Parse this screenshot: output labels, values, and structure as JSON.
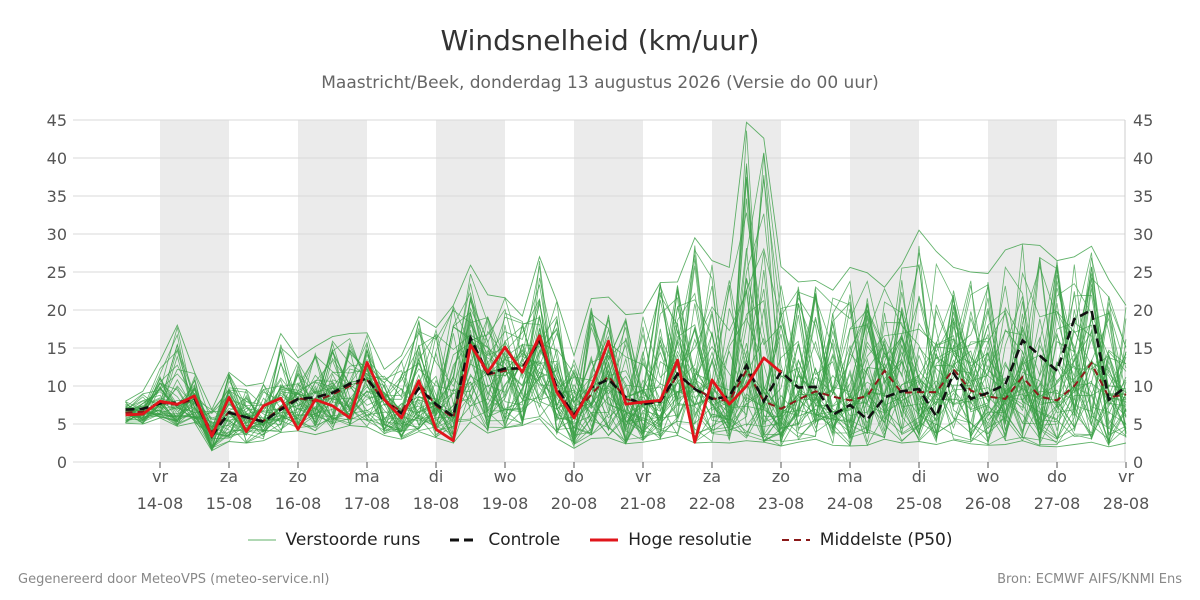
{
  "title": "Windsnelheid (km/uur)",
  "subtitle": "Maastricht/Beek, donderdag 13 augustus 2026 (Versie do 00 uur)",
  "footer": {
    "left": "Gegenereerd door MeteoVPS (meteo-service.nl)",
    "right": "Bron: ECMWF AIFS/KNMI Ens"
  },
  "legend": {
    "ensemble": "Verstoorde runs",
    "control": "Controle",
    "hires": "Hoge resolutie",
    "median": "Middelste (P50)"
  },
  "chart_data": {
    "type": "line",
    "title": "Windsnelheid (km/uur)",
    "ylim": [
      0,
      45
    ],
    "yticks": [
      0,
      5,
      10,
      15,
      20,
      25,
      30,
      35,
      40,
      45
    ],
    "xrange_days": [
      13.3,
      28
    ],
    "xticks": [
      {
        "day": "vr",
        "date": "14-08"
      },
      {
        "day": "za",
        "date": "15-08"
      },
      {
        "day": "zo",
        "date": "16-08"
      },
      {
        "day": "ma",
        "date": "17-08"
      },
      {
        "day": "di",
        "date": "18-08"
      },
      {
        "day": "wo",
        "date": "19-08"
      },
      {
        "day": "do",
        "date": "20-08"
      },
      {
        "day": "vr",
        "date": "21-08"
      },
      {
        "day": "za",
        "date": "22-08"
      },
      {
        "day": "zo",
        "date": "23-08"
      },
      {
        "day": "ma",
        "date": "24-08"
      },
      {
        "day": "di",
        "date": "25-08"
      },
      {
        "day": "wo",
        "date": "26-08"
      },
      {
        "day": "do",
        "date": "27-08"
      },
      {
        "day": "vr",
        "date": "28-08"
      }
    ],
    "shaded_days": [
      "14-08",
      "16-08",
      "18-08",
      "20-08",
      "22-08",
      "24-08",
      "26-08"
    ],
    "grid": true,
    "legend_position": "bottom",
    "colors": {
      "ensemble": "#3a9f45",
      "control": "#111111",
      "hires": "#e0151b",
      "median": "#8b1a1a",
      "shade": "#ebebeb",
      "grid": "#d9d9d9"
    },
    "series": [
      {
        "name": "Hoge resolutie",
        "x": [
          "13-08 12:00",
          "13-08 18:00",
          "14-08 00:00",
          "14-08 06:00",
          "14-08 12:00",
          "14-08 18:00",
          "15-08 00:00",
          "15-08 06:00",
          "15-08 12:00",
          "15-08 18:00",
          "16-08 00:00",
          "16-08 06:00",
          "16-08 12:00",
          "16-08 18:00",
          "17-08 00:00",
          "17-08 06:00",
          "17-08 12:00",
          "17-08 18:00",
          "18-08 00:00",
          "18-08 06:00",
          "18-08 12:00",
          "18-08 18:00",
          "19-08 00:00",
          "19-08 06:00",
          "19-08 12:00",
          "19-08 18:00",
          "20-08 00:00",
          "20-08 06:00",
          "20-08 12:00",
          "20-08 18:00",
          "21-08 00:00",
          "21-08 06:00",
          "21-08 12:00",
          "21-08 18:00",
          "22-08 00:00",
          "22-08 06:00",
          "22-08 12:00",
          "22-08 18:00",
          "23-08 00:00"
        ],
        "values": [
          6.2,
          6.3,
          8.0,
          7.6,
          8.7,
          3.4,
          8.5,
          4.0,
          7.4,
          8.4,
          4.3,
          8.2,
          7.4,
          5.8,
          13.1,
          8.2,
          5.8,
          10.7,
          4.3,
          2.8,
          15.4,
          11.8,
          15.1,
          11.8,
          16.6,
          9.2,
          5.8,
          9.9,
          15.9,
          7.6,
          7.9,
          8.1,
          13.4,
          2.6,
          10.8,
          7.6,
          10.0,
          13.7,
          11.8
        ]
      },
      {
        "name": "Controle",
        "x": [
          "13-08 12:00",
          "13-08 18:00",
          "14-08 00:00",
          "14-08 06:00",
          "14-08 12:00",
          "14-08 18:00",
          "15-08 00:00",
          "15-08 06:00",
          "15-08 12:00",
          "15-08 18:00",
          "16-08 00:00",
          "16-08 06:00",
          "16-08 12:00",
          "16-08 18:00",
          "17-08 00:00",
          "17-08 06:00",
          "17-08 12:00",
          "17-08 18:00",
          "18-08 00:00",
          "18-08 06:00",
          "18-08 12:00",
          "18-08 18:00",
          "19-08 00:00",
          "19-08 06:00",
          "19-08 12:00",
          "19-08 18:00",
          "20-08 00:00",
          "20-08 06:00",
          "20-08 12:00",
          "20-08 18:00",
          "21-08 00:00",
          "21-08 06:00",
          "21-08 12:00",
          "21-08 18:00",
          "22-08 00:00",
          "22-08 06:00",
          "22-08 12:00",
          "22-08 18:00",
          "23-08 00:00",
          "23-08 06:00",
          "23-08 12:00",
          "23-08 18:00",
          "24-08 00:00",
          "24-08 06:00",
          "24-08 12:00",
          "24-08 18:00",
          "25-08 00:00",
          "25-08 06:00",
          "25-08 12:00",
          "25-08 18:00",
          "26-08 00:00",
          "26-08 06:00",
          "26-08 12:00",
          "26-08 18:00",
          "27-08 00:00",
          "27-08 06:00",
          "27-08 12:00",
          "27-08 18:00",
          "28-08 00:00"
        ],
        "values": [
          6.9,
          7.0,
          7.7,
          7.8,
          8.4,
          3.4,
          6.5,
          5.9,
          5.3,
          6.9,
          8.3,
          8.5,
          9.1,
          10.3,
          11.0,
          8.0,
          6.4,
          9.7,
          7.6,
          6.0,
          16.3,
          11.6,
          12.3,
          12.3,
          16.0,
          9.8,
          6.1,
          9.8,
          10.9,
          8.5,
          7.6,
          8.0,
          11.6,
          9.6,
          8.3,
          8.6,
          12.7,
          8.0,
          11.9,
          9.8,
          9.9,
          6.2,
          7.5,
          5.6,
          8.5,
          9.3,
          9.6,
          6.0,
          11.7,
          8.3,
          9.1,
          10.2,
          16.0,
          14.0,
          12.0,
          18.8,
          20.0,
          8.2,
          9.9
        ]
      },
      {
        "name": "Middelste (P50)",
        "x": [
          "13-08 12:00",
          "13-08 18:00",
          "14-08 00:00",
          "14-08 06:00",
          "14-08 12:00",
          "14-08 18:00",
          "15-08 00:00",
          "15-08 06:00",
          "15-08 12:00",
          "15-08 18:00",
          "16-08 00:00",
          "16-08 06:00",
          "16-08 12:00",
          "16-08 18:00",
          "17-08 00:00",
          "17-08 06:00",
          "17-08 12:00",
          "17-08 18:00",
          "18-08 00:00",
          "18-08 06:00",
          "18-08 12:00",
          "18-08 18:00",
          "19-08 00:00",
          "19-08 06:00",
          "19-08 12:00",
          "19-08 18:00",
          "20-08 00:00",
          "20-08 06:00",
          "20-08 12:00",
          "20-08 18:00",
          "21-08 00:00",
          "21-08 06:00",
          "21-08 12:00",
          "21-08 18:00",
          "22-08 00:00",
          "22-08 06:00",
          "22-08 12:00",
          "22-08 18:00",
          "23-08 00:00",
          "23-08 06:00",
          "23-08 12:00",
          "23-08 18:00",
          "24-08 00:00",
          "24-08 06:00",
          "24-08 12:00",
          "24-08 18:00",
          "25-08 00:00",
          "25-08 06:00",
          "25-08 12:00",
          "25-08 18:00",
          "26-08 00:00",
          "26-08 06:00",
          "26-08 12:00",
          "26-08 18:00",
          "27-08 00:00",
          "27-08 06:00",
          "27-08 12:00",
          "27-08 18:00",
          "28-08 00:00"
        ],
        "values": [
          6.5,
          6.6,
          7.8,
          7.5,
          8.3,
          3.9,
          6.6,
          5.8,
          5.4,
          7.1,
          8.4,
          8.0,
          8.9,
          10.0,
          10.8,
          8.2,
          6.6,
          10.4,
          7.4,
          5.8,
          15.4,
          11.5,
          12.0,
          12.5,
          16.0,
          9.6,
          6.2,
          8.9,
          11.3,
          8.3,
          7.6,
          7.9,
          11.4,
          9.7,
          8.4,
          8.0,
          12.1,
          8.0,
          7.0,
          8.2,
          9.3,
          8.6,
          8.1,
          8.7,
          12.0,
          9.1,
          9.2,
          9.2,
          12.2,
          9.4,
          8.6,
          8.3,
          11.2,
          8.6,
          8.1,
          10.0,
          13.0,
          8.5,
          8.9
        ]
      },
      {
        "name": "Verstoorde runs",
        "members": 50,
        "low_bound": [
          5.1,
          5.0,
          5.8,
          4.7,
          5.2,
          1.5,
          2.7,
          2.5,
          2.8,
          3.9,
          4.1,
          3.6,
          4.2,
          4.8,
          4.6,
          3.5,
          3.0,
          4.0,
          3.2,
          2.5,
          5.3,
          3.8,
          4.5,
          4.8,
          5.7,
          3.1,
          1.8,
          3.1,
          3.2,
          2.4,
          2.6,
          3.0,
          3.5,
          2.5,
          2.6,
          2.5,
          2.8,
          2.6,
          2.1,
          2.6,
          3.0,
          2.2,
          2.1,
          2.2,
          3.0,
          2.5,
          2.7,
          2.3,
          2.9,
          2.4,
          2.2,
          2.3,
          2.8,
          2.1,
          2.0,
          2.3,
          2.6,
          2.0,
          2.5
        ],
        "high_bound": [
          8.0,
          9.3,
          13.3,
          18.0,
          11.8,
          6.9,
          11.8,
          10.0,
          10.4,
          16.9,
          13.7,
          15.2,
          16.5,
          16.9,
          17.0,
          12.2,
          14.0,
          19.1,
          17.7,
          20.6,
          25.9,
          22.0,
          21.6,
          19.2,
          27.0,
          21.2,
          14.0,
          21.5,
          21.7,
          19.4,
          19.6,
          23.6,
          23.7,
          29.5,
          26.5,
          25.6,
          44.7,
          42.6,
          25.7,
          23.7,
          23.9,
          22.6,
          25.6,
          24.9,
          23.0,
          26.0,
          30.5,
          27.7,
          25.6,
          25.0,
          24.8,
          27.9,
          28.7,
          28.5,
          26.5,
          27.0,
          28.4,
          24.0,
          20.6
        ]
      }
    ]
  }
}
